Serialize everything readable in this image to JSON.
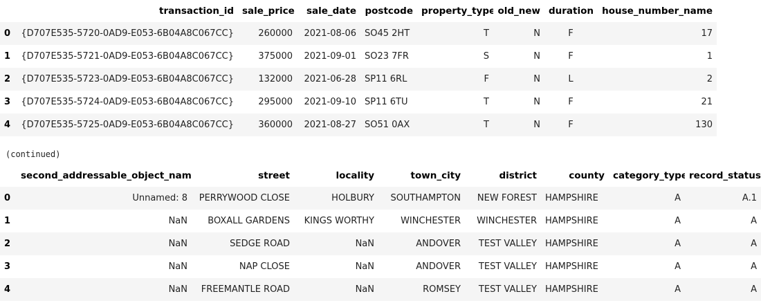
{
  "table1": {
    "columns": [
      "transaction_id",
      "sale_price",
      "sale_date",
      "postcode",
      "property_type",
      "old_new",
      "duration",
      "house_number_name"
    ],
    "rows": [
      {
        "index": "0",
        "cells": [
          "{D707E535-5720-0AD9-E053-6B04A8C067CC}",
          "260000",
          "2021-08-06",
          "SO45 2HT",
          "T",
          "N",
          "F",
          "17"
        ]
      },
      {
        "index": "1",
        "cells": [
          "{D707E535-5721-0AD9-E053-6B04A8C067CC}",
          "375000",
          "2021-09-01",
          "SO23 7FR",
          "S",
          "N",
          "F",
          "1"
        ]
      },
      {
        "index": "2",
        "cells": [
          "{D707E535-5723-0AD9-E053-6B04A8C067CC}",
          "132000",
          "2021-06-28",
          "SP11 6RL",
          "F",
          "N",
          "L",
          "2"
        ]
      },
      {
        "index": "3",
        "cells": [
          "{D707E535-5724-0AD9-E053-6B04A8C067CC}",
          "295000",
          "2021-09-10",
          "SP11 6TU",
          "T",
          "N",
          "F",
          "21"
        ]
      },
      {
        "index": "4",
        "cells": [
          "{D707E535-5725-0AD9-E053-6B04A8C067CC}",
          "360000",
          "2021-08-27",
          "SO51 0AX",
          "T",
          "N",
          "F",
          "130"
        ]
      }
    ]
  },
  "continued_label": "(continued)",
  "table2": {
    "columns": [
      "second_addressable_object_name",
      "street",
      "locality",
      "town_city",
      "district",
      "county",
      "category_type",
      "record_status"
    ],
    "rows": [
      {
        "index": "0",
        "cells": [
          "Unnamed: 8",
          "PERRYWOOD CLOSE",
          "HOLBURY",
          "SOUTHAMPTON",
          "NEW FOREST",
          "HAMPSHIRE",
          "A",
          "A.1"
        ]
      },
      {
        "index": "1",
        "cells": [
          "NaN",
          "BOXALL GARDENS",
          "KINGS WORTHY",
          "WINCHESTER",
          "WINCHESTER",
          "HAMPSHIRE",
          "A",
          "A"
        ]
      },
      {
        "index": "2",
        "cells": [
          "NaN",
          "SEDGE ROAD",
          "NaN",
          "ANDOVER",
          "TEST VALLEY",
          "HAMPSHIRE",
          "A",
          "A"
        ]
      },
      {
        "index": "3",
        "cells": [
          "NaN",
          "NAP CLOSE",
          "NaN",
          "ANDOVER",
          "TEST VALLEY",
          "HAMPSHIRE",
          "A",
          "A"
        ]
      },
      {
        "index": "4",
        "cells": [
          "NaN",
          "FREEMANTLE ROAD",
          "NaN",
          "ROMSEY",
          "TEST VALLEY",
          "HAMPSHIRE",
          "A",
          "A"
        ]
      }
    ]
  }
}
